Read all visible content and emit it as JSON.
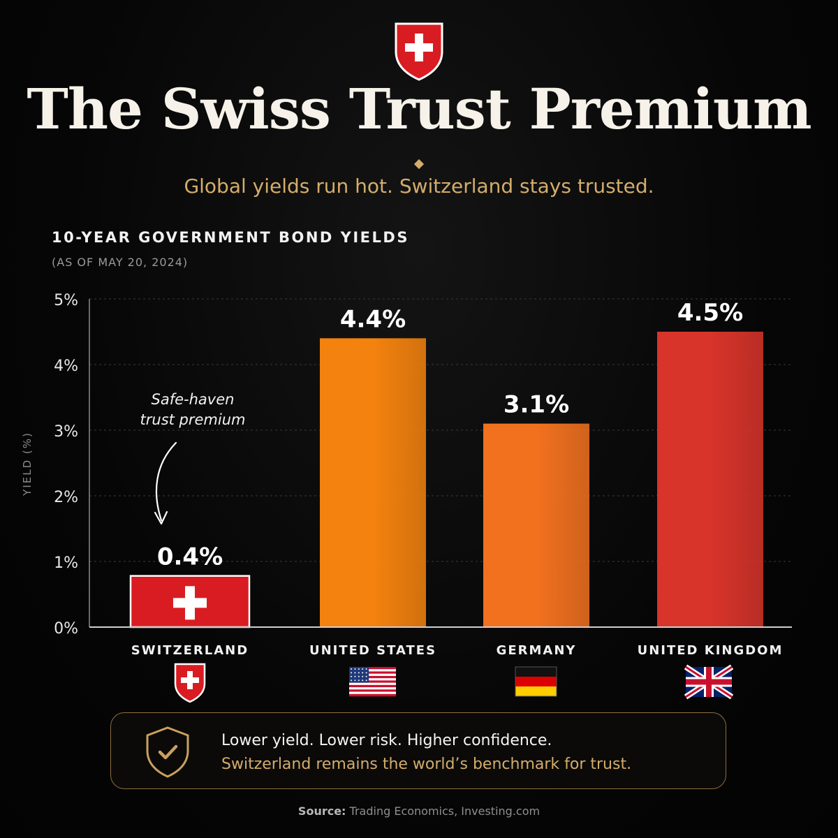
{
  "header": {
    "title": "The Swiss Trust Premium",
    "subtitle": "Global yields run hot. Switzerland stays trusted."
  },
  "chart_heading": "10-YEAR GOVERNMENT BOND YIELDS",
  "chart_subheading": "(AS OF MAY 20, 2024)",
  "chart_data": {
    "type": "bar",
    "title": "10-YEAR GOVERNMENT BOND YIELDS",
    "subtitle": "(AS OF MAY 20, 2024)",
    "xlabel": "",
    "ylabel": "YIELD (%)",
    "ylim": [
      0,
      5
    ],
    "yticks": [
      0,
      1,
      2,
      3,
      4,
      5
    ],
    "ytick_labels": [
      "0%",
      "1%",
      "2%",
      "3%",
      "4%",
      "5%"
    ],
    "grid": true,
    "categories": [
      "SWITZERLAND",
      "UNITED STATES",
      "GERMANY",
      "UNITED KINGDOM"
    ],
    "values": [
      0.4,
      4.4,
      3.1,
      4.5
    ],
    "value_labels": [
      "0.4%",
      "4.4%",
      "3.1%",
      "4.5%"
    ],
    "bar_colors": [
      "#d91c22",
      "#f4820e",
      "#f2711f",
      "#d8342a"
    ],
    "flags": [
      "swiss-flag-icon",
      "us-flag-icon",
      "germany-flag-icon",
      "uk-flag-icon"
    ],
    "annotation": {
      "category": "SWITZERLAND",
      "lines": [
        "Safe-haven",
        "trust premium"
      ]
    }
  },
  "callout": {
    "line1": "Lower yield. Lower risk. Higher confidence.",
    "line2": "Switzerland remains the world’s benchmark for trust.",
    "icon": "shield-check-icon"
  },
  "source": {
    "label": "Source:",
    "text": "Trading Economics, Investing.com"
  },
  "colors": {
    "background": "#050505",
    "gold": "#d4ad6b",
    "swiss_red": "#d91c22"
  }
}
